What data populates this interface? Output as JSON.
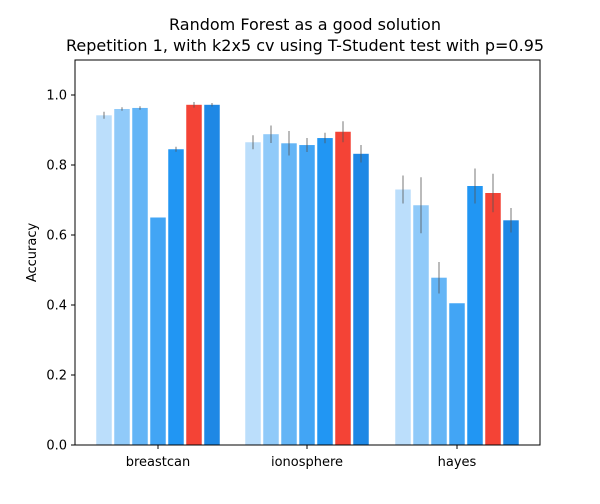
{
  "chart_data": {
    "type": "bar",
    "title": "Random Forest as a good solution",
    "subtitle": "Repetition 1, with k2x5 cv using T-Student test with p=0.95",
    "xlabel": "",
    "ylabel": "Accuracy",
    "ylim": [
      0,
      1.1
    ],
    "yticks": [
      "0.0",
      "0.2",
      "0.4",
      "0.6",
      "0.8",
      "1.0"
    ],
    "grid": false,
    "legend": "none",
    "categories": [
      "breastcan",
      "ionosphere",
      "hayes"
    ],
    "series": [
      {
        "color": "#bbdefb",
        "values": [
          0.942,
          0.865,
          0.73
        ],
        "errors": [
          0.01,
          0.02,
          0.04
        ]
      },
      {
        "color": "#90caf9",
        "values": [
          0.96,
          0.888,
          0.685
        ],
        "errors": [
          0.005,
          0.025,
          0.08
        ]
      },
      {
        "color": "#64b5f6",
        "values": [
          0.963,
          0.862,
          0.478
        ],
        "errors": [
          0.005,
          0.035,
          0.045
        ]
      },
      {
        "color": "#42a5f5",
        "values": [
          0.65,
          0.857,
          0.405
        ],
        "errors": [
          0.0,
          0.02,
          0.0
        ]
      },
      {
        "color": "#2196f3",
        "values": [
          0.845,
          0.877,
          0.74
        ],
        "errors": [
          0.007,
          0.015,
          0.05
        ]
      },
      {
        "color": "#f44336",
        "values": [
          0.972,
          0.895,
          0.72
        ],
        "errors": [
          0.008,
          0.03,
          0.055
        ]
      },
      {
        "color": "#1e88e5",
        "values": [
          0.972,
          0.832,
          0.642
        ],
        "errors": [
          0.005,
          0.025,
          0.035
        ]
      }
    ]
  }
}
